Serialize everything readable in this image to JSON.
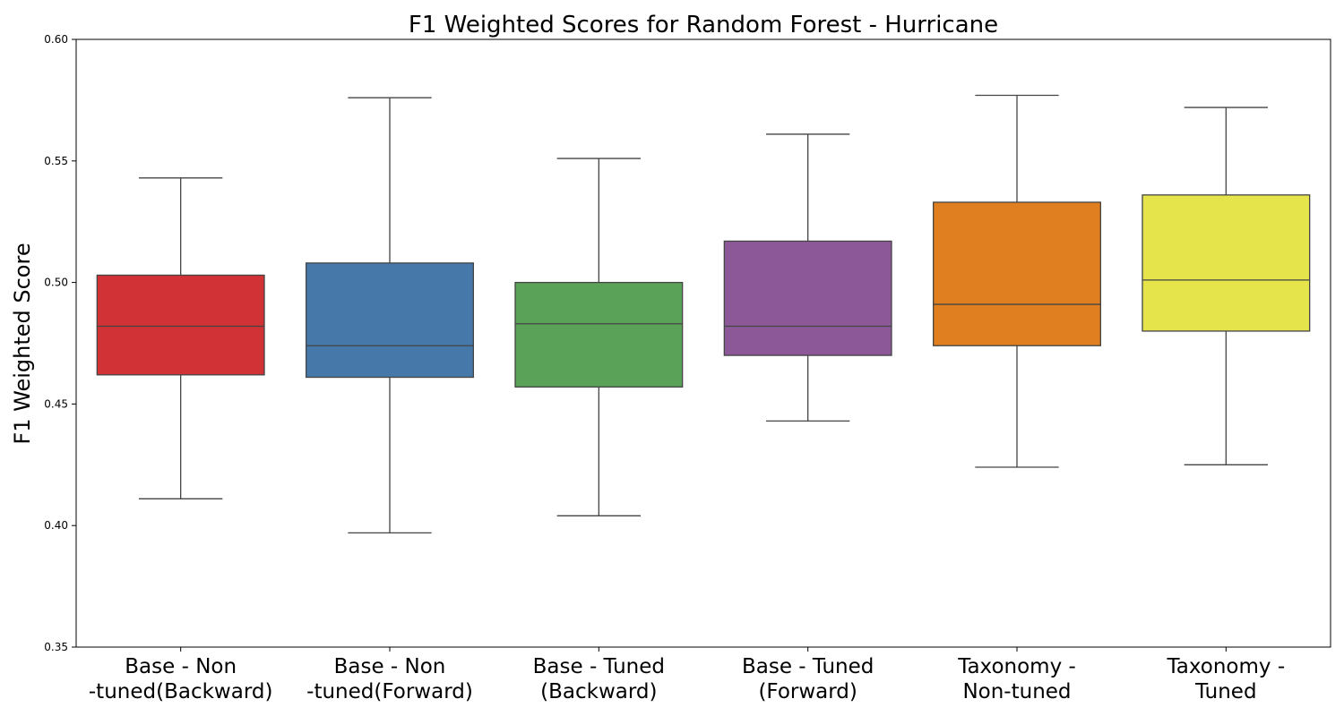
{
  "chart_data": {
    "type": "box",
    "title": "F1 Weighted Scores for Random Forest - Hurricane",
    "xlabel": "",
    "ylabel": "F1 Weighted Score",
    "ylim": [
      0.35,
      0.6
    ],
    "yticks": [
      "0.35",
      "0.40",
      "0.45",
      "0.50",
      "0.55",
      "0.60"
    ],
    "grid": false,
    "categories": [
      [
        "Base - Non",
        "-tuned(Backward)"
      ],
      [
        "Base - Non",
        "-tuned(Forward)"
      ],
      [
        "Base - Tuned",
        "(Backward)"
      ],
      [
        "Base - Tuned",
        "(Forward)"
      ],
      [
        "Taxonomy -",
        "Non-tuned"
      ],
      [
        "Taxonomy -",
        "Tuned"
      ]
    ],
    "boxes": [
      {
        "min": 0.411,
        "q1": 0.462,
        "median": 0.482,
        "q3": 0.503,
        "max": 0.543,
        "color": "#D03235"
      },
      {
        "min": 0.397,
        "q1": 0.461,
        "median": 0.474,
        "q3": 0.508,
        "max": 0.576,
        "color": "#4679AA"
      },
      {
        "min": 0.404,
        "q1": 0.457,
        "median": 0.483,
        "q3": 0.5,
        "max": 0.551,
        "color": "#5AA258"
      },
      {
        "min": 0.443,
        "q1": 0.47,
        "median": 0.482,
        "q3": 0.517,
        "max": 0.561,
        "color": "#8D5898"
      },
      {
        "min": 0.424,
        "q1": 0.474,
        "median": 0.491,
        "q3": 0.533,
        "max": 0.577,
        "color": "#E07F20"
      },
      {
        "min": 0.425,
        "q1": 0.48,
        "median": 0.501,
        "q3": 0.536,
        "max": 0.572,
        "color": "#E5E44B"
      }
    ]
  }
}
